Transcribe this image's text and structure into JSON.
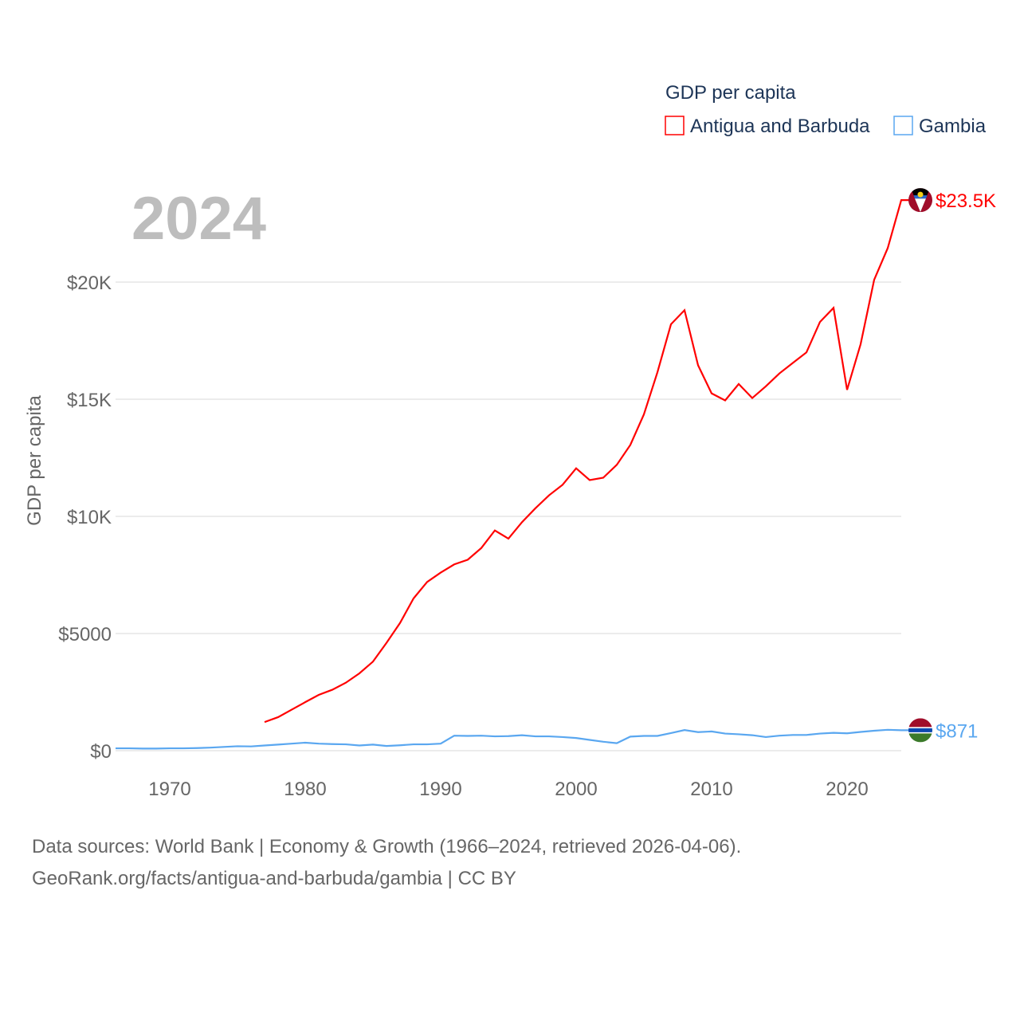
{
  "chart_data": {
    "type": "line",
    "title": "",
    "year_label": "2024",
    "ylabel": "GDP per capita",
    "xlabel": "",
    "xlim": [
      1966,
      2024
    ],
    "ylim": [
      0,
      24000
    ],
    "x_ticks": [
      1970,
      1980,
      1990,
      2000,
      2010,
      2020
    ],
    "x_tick_labels": [
      "1970",
      "1980",
      "1990",
      "2000",
      "2010",
      "2020"
    ],
    "y_ticks": [
      0,
      5000,
      10000,
      15000,
      20000
    ],
    "y_tick_labels": [
      "$0",
      "$5000",
      "$10K",
      "$15K",
      "$20K"
    ],
    "grid": true,
    "legend": {
      "title": "GDP per capita",
      "placement": "top-right"
    },
    "series": [
      {
        "name": "Antigua and Barbuda",
        "color": "#ff0000",
        "end_label": "$23.5K",
        "flag": "antigua-and-barbuda-flag",
        "x": [
          1977,
          1978,
          1979,
          1980,
          1981,
          1982,
          1983,
          1984,
          1985,
          1986,
          1987,
          1988,
          1989,
          1990,
          1991,
          1992,
          1993,
          1994,
          1995,
          1996,
          1997,
          1998,
          1999,
          2000,
          2001,
          2002,
          2003,
          2004,
          2005,
          2006,
          2007,
          2008,
          2009,
          2010,
          2011,
          2012,
          2013,
          2014,
          2015,
          2016,
          2017,
          2018,
          2019,
          2020,
          2021,
          2022,
          2023,
          2024
        ],
        "values": [
          1220,
          1430,
          1750,
          2070,
          2380,
          2600,
          2900,
          3300,
          3800,
          4600,
          5450,
          6500,
          7200,
          7600,
          7950,
          8150,
          8650,
          9400,
          9050,
          9750,
          10350,
          10900,
          11350,
          12050,
          11550,
          11650,
          12200,
          13050,
          14350,
          16150,
          18200,
          18800,
          16450,
          15250,
          14950,
          15650,
          15050,
          15550,
          16100,
          16550,
          17000,
          18300,
          18900,
          15400,
          17350,
          20100,
          21450,
          23500
        ]
      },
      {
        "name": "Gambia",
        "color": "#5aa7f0",
        "end_label": "$871",
        "flag": "gambia-flag",
        "x": [
          1966,
          1967,
          1968,
          1969,
          1970,
          1971,
          1972,
          1973,
          1974,
          1975,
          1976,
          1977,
          1978,
          1979,
          1980,
          1981,
          1982,
          1983,
          1984,
          1985,
          1986,
          1987,
          1988,
          1989,
          1990,
          1991,
          1992,
          1993,
          1994,
          1995,
          1996,
          1997,
          1998,
          1999,
          2000,
          2001,
          2002,
          2003,
          2004,
          2005,
          2006,
          2007,
          2008,
          2009,
          2010,
          2011,
          2012,
          2013,
          2014,
          2015,
          2016,
          2017,
          2018,
          2019,
          2020,
          2021,
          2022,
          2023,
          2024
        ],
        "values": [
          100,
          100,
          90,
          90,
          100,
          100,
          110,
          130,
          160,
          190,
          180,
          220,
          260,
          300,
          340,
          300,
          280,
          270,
          220,
          260,
          200,
          230,
          270,
          270,
          300,
          640,
          630,
          640,
          610,
          620,
          660,
          610,
          610,
          580,
          540,
          460,
          380,
          320,
          600,
          630,
          630,
          750,
          880,
          790,
          820,
          730,
          700,
          660,
          580,
          640,
          670,
          670,
          730,
          760,
          740,
          800,
          850,
          890,
          871
        ]
      }
    ]
  },
  "footer": {
    "line1": "Data sources: World Bank | Economy & Growth (1966–2024, retrieved 2026-04-06).",
    "line2": "GeoRank.org/facts/antigua-and-barbuda/gambia | CC BY"
  }
}
